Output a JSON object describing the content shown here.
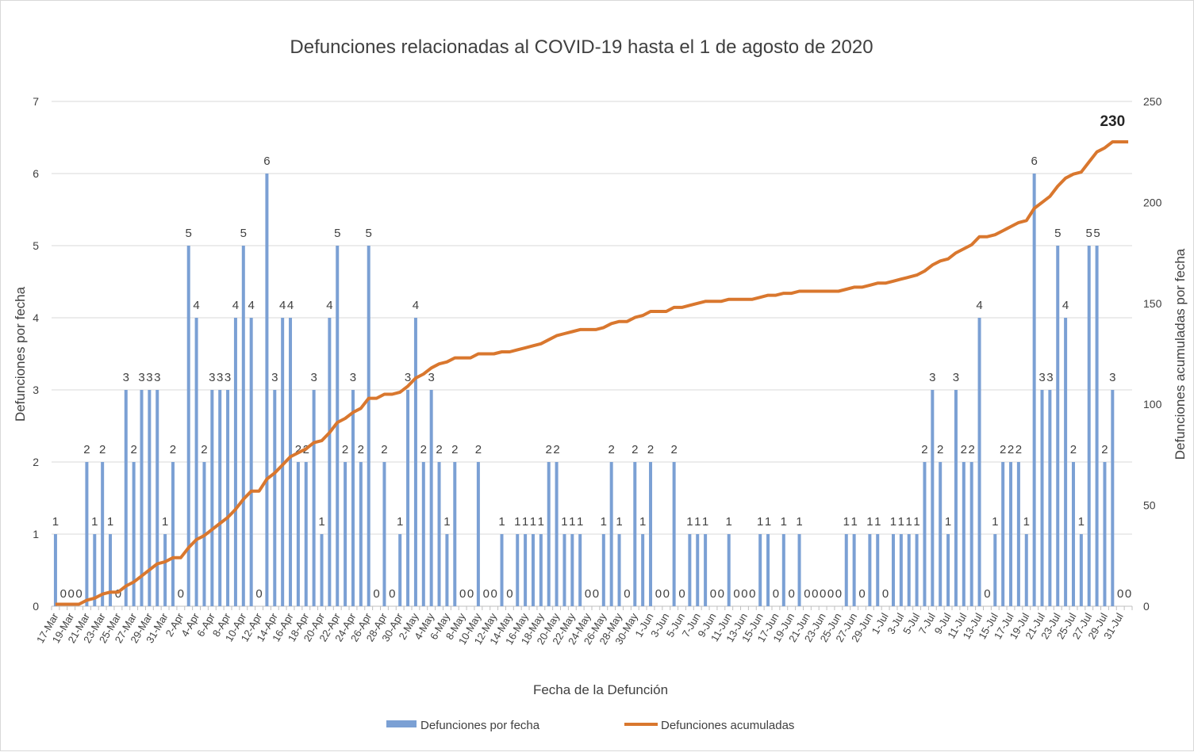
{
  "chart_data": {
    "type": "bar+line",
    "title": "Defunciones relacionadas al COVID-19 hasta el 1 de agosto de 2020",
    "xlabel": "Fecha de la Defunción",
    "ylabel": "Defunciones por fecha",
    "y2label": "Defunciones acumuladas por fecha",
    "ylim": [
      0,
      7
    ],
    "y2lim": [
      0,
      250
    ],
    "y_ticks": [
      "0",
      "1",
      "2",
      "3",
      "4",
      "5",
      "6",
      "7"
    ],
    "y2_ticks": [
      "0",
      "50",
      "100",
      "150",
      "200",
      "250"
    ],
    "grid": true,
    "legend_position": "bottom",
    "x_tick_labels": [
      "17-Mar",
      "19-Mar",
      "21-Mar",
      "23-Mar",
      "25-Mar",
      "27-Mar",
      "29-Mar",
      "31-Mar",
      "2-Apr",
      "4-Apr",
      "6-Apr",
      "8-Apr",
      "10-Apr",
      "12-Apr",
      "14-Apr",
      "16-Apr",
      "18-Apr",
      "20-Apr",
      "22-Apr",
      "24-Apr",
      "26-Apr",
      "28-Apr",
      "30-Apr",
      "2-May",
      "4-May",
      "6-May",
      "8-May",
      "10-May",
      "12-May",
      "14-May",
      "16-May",
      "18-May",
      "20-May",
      "22-May",
      "24-May",
      "26-May",
      "28-May",
      "30-May",
      "1-Jun",
      "3-Jun",
      "5-Jun",
      "7-Jun",
      "9-Jun",
      "11-Jun",
      "13-Jun",
      "15-Jun",
      "17-Jun",
      "19-Jun",
      "21-Jun",
      "23-Jun",
      "25-Jun",
      "27-Jun",
      "29-Jun",
      "1-Jul",
      "3-Jul",
      "5-Jul",
      "7-Jul",
      "9-Jul",
      "11-Jul",
      "13-Jul",
      "15-Jul",
      "17-Jul",
      "19-Jul",
      "21-Jul",
      "23-Jul",
      "25-Jul",
      "27-Jul",
      "29-Jul",
      "31-Jul"
    ],
    "series": [
      {
        "name": "Defunciones por fecha",
        "type": "bar",
        "color": "#7ba0d4",
        "values": [
          1,
          0,
          0,
          0,
          2,
          1,
          2,
          1,
          0,
          3,
          2,
          3,
          3,
          3,
          1,
          2,
          0,
          5,
          4,
          2,
          3,
          3,
          3,
          4,
          5,
          4,
          0,
          6,
          3,
          4,
          4,
          2,
          2,
          3,
          1,
          4,
          5,
          2,
          3,
          2,
          5,
          0,
          2,
          0,
          1,
          3,
          4,
          2,
          3,
          2,
          1,
          2,
          0,
          0,
          2,
          0,
          0,
          1,
          0,
          1,
          1,
          1,
          1,
          2,
          2,
          1,
          1,
          1,
          0,
          0,
          1,
          2,
          1,
          0,
          2,
          1,
          2,
          0,
          0,
          2,
          0,
          1,
          1,
          1,
          0,
          0,
          1,
          0,
          0,
          0,
          1,
          1,
          0,
          1,
          0,
          1,
          0,
          0,
          0,
          0,
          0,
          1,
          1,
          0,
          1,
          1,
          0,
          1,
          1,
          1,
          1,
          2,
          3,
          2,
          1,
          3,
          2,
          2,
          4,
          0,
          1,
          2,
          2,
          2,
          1,
          6,
          3,
          3,
          5,
          4,
          2,
          1,
          5,
          5,
          2,
          3,
          0,
          0
        ]
      },
      {
        "name": "Defunciones acumuladas",
        "type": "line",
        "color": "#d9772e",
        "axis": "right",
        "derived": "cumulative",
        "final_label": "230"
      }
    ]
  }
}
